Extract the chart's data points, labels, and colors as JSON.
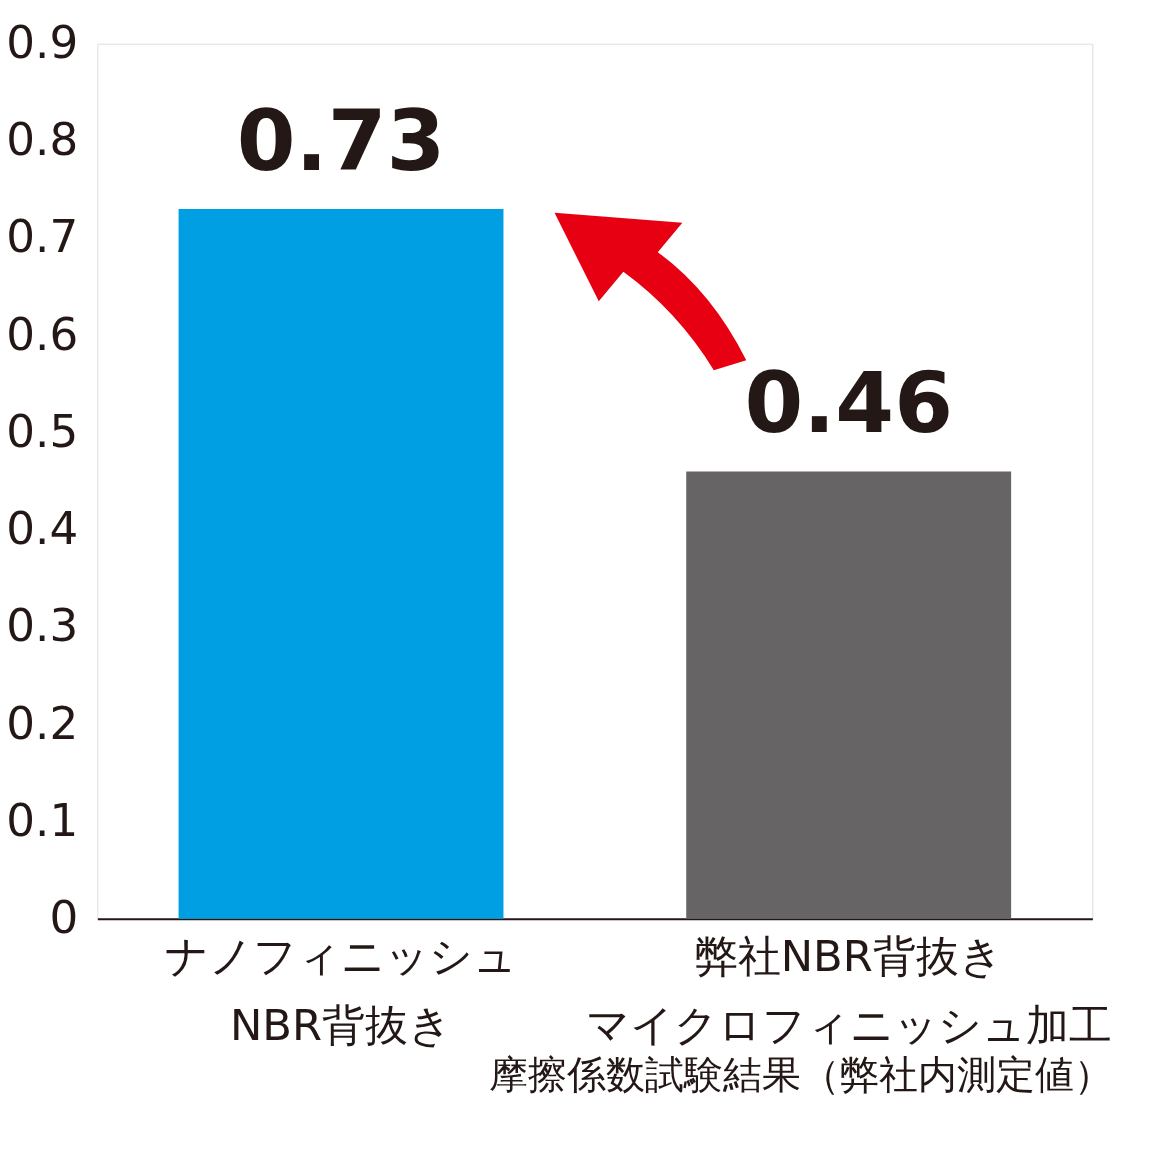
{
  "chart_data": {
    "type": "bar",
    "categories": [
      "ナノフィニッシュNBR背抜き",
      "弊社NBR背抜きマイクロフィニッシュ加工"
    ],
    "values": [
      0.73,
      0.46
    ],
    "colors": [
      "#009fe3",
      "#666465"
    ],
    "ylim": [
      0,
      0.9
    ],
    "yticks": [
      0,
      0.1,
      0.2,
      0.3,
      0.4,
      0.5,
      0.6,
      0.7,
      0.8,
      0.9
    ],
    "data_labels": true,
    "grid": false,
    "annotations": [
      "摩擦係数試験結果（弊社内測定値）"
    ]
  }
}
